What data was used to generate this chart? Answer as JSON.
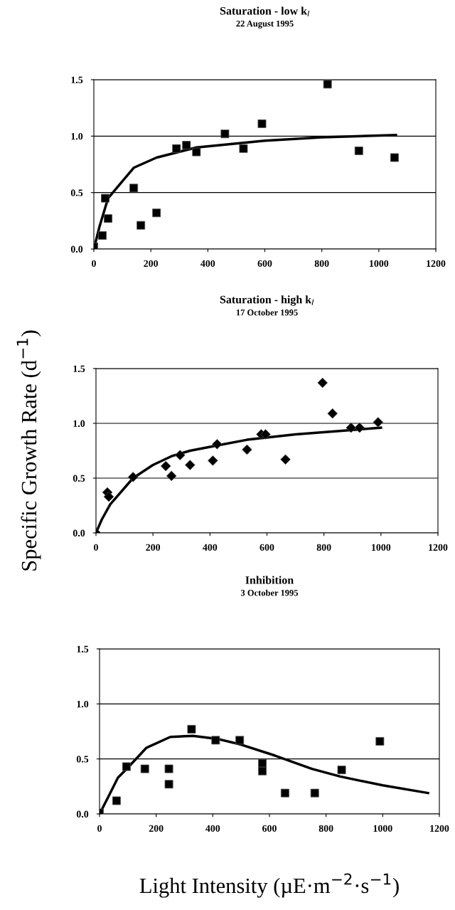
{
  "chart_data": [
    {
      "type": "scatter",
      "title": "Saturation - low k$_{I}$",
      "subtitle": "22 August 1995",
      "xlim": [
        0,
        1200
      ],
      "ylim": [
        0,
        1.5
      ],
      "xticks": [
        0,
        200,
        400,
        600,
        800,
        1000,
        1200
      ],
      "yticks": [
        {
          "value": 0,
          "label": "0.0"
        },
        {
          "value": 0.5,
          "label": "0.5"
        },
        {
          "value": 1,
          "label": "1.0"
        },
        {
          "value": 1.5,
          "label": "1.5"
        }
      ],
      "grid": "y",
      "legend": false,
      "series": [
        {
          "color": "#000000",
          "marker": "square",
          "x": [
            0,
            30,
            40,
            50,
            140,
            165,
            220,
            290,
            325,
            360,
            460,
            525,
            590,
            820,
            930,
            1055
          ],
          "values": [
            0.02,
            0.12,
            0.45,
            0.27,
            0.54,
            0.21,
            0.32,
            0.89,
            0.92,
            0.86,
            1.02,
            0.89,
            1.11,
            1.46,
            0.87,
            0.81
          ]
        },
        {
          "type": "line",
          "color": "#000000",
          "marker": "none",
          "line_style": "solid",
          "x": [
            0,
            20,
            50,
            140,
            220,
            360,
            600,
            800,
            1060
          ],
          "values": [
            0,
            0.2,
            0.45,
            0.72,
            0.81,
            0.9,
            0.96,
            0.99,
            1.01
          ]
        }
      ]
    },
    {
      "type": "scatter",
      "title": "Saturation - high k$_{I}$",
      "subtitle": "17 October 1995",
      "ylabel": "Specific Growth Rate (d$^{−1}$)",
      "xlim": [
        0,
        1200
      ],
      "ylim": [
        0,
        1.5
      ],
      "xticks": [
        0,
        200,
        400,
        600,
        800,
        1000,
        1200
      ],
      "yticks": [
        {
          "value": 0,
          "label": "0.0"
        },
        {
          "value": 0.5,
          "label": "0.5"
        },
        {
          "value": 1,
          "label": "1.0"
        },
        {
          "value": 1.5,
          "label": "1.5"
        }
      ],
      "grid": "y",
      "legend": false,
      "series": [
        {
          "color": "#000000",
          "marker": "diamond",
          "x": [
            0,
            40,
            45,
            130,
            245,
            265,
            295,
            330,
            410,
            425,
            530,
            580,
            595,
            665,
            795,
            830,
            895,
            925,
            990
          ],
          "values": [
            0,
            0.37,
            0.33,
            0.51,
            0.61,
            0.52,
            0.71,
            0.62,
            0.66,
            0.81,
            0.76,
            0.9,
            0.9,
            0.67,
            1.37,
            1.09,
            0.96,
            0.96,
            1.01
          ]
        },
        {
          "type": "line",
          "color": "#000000",
          "marker": "none",
          "line_style": "solid",
          "x": [
            0,
            20,
            50,
            130,
            200,
            265,
            330,
            430,
            530,
            700,
            1000
          ],
          "values": [
            0,
            0.12,
            0.26,
            0.5,
            0.62,
            0.7,
            0.75,
            0.8,
            0.85,
            0.9,
            0.96
          ]
        }
      ]
    },
    {
      "type": "scatter",
      "title": "Inhibition",
      "subtitle": "3 October 1995",
      "xlabel": "Light Intensity (µE·m$^{−2}$·s$^{−1}$)",
      "xlim": [
        0,
        1200
      ],
      "ylim": [
        0,
        1.5
      ],
      "xticks": [
        0,
        200,
        400,
        600,
        800,
        1000,
        1200
      ],
      "yticks": [
        {
          "value": 0,
          "label": "0.0"
        },
        {
          "value": 0.5,
          "label": "0.5"
        },
        {
          "value": 1,
          "label": "1.0"
        },
        {
          "value": 1.5,
          "label": "1.5"
        }
      ],
      "grid": "y",
      "legend": false,
      "series": [
        {
          "color": "#000000",
          "marker": "square",
          "x": [
            0,
            60,
            95,
            160,
            245,
            245,
            325,
            410,
            495,
            575,
            575,
            655,
            760,
            855,
            990
          ],
          "values": [
            0.01,
            0.12,
            0.43,
            0.41,
            0.41,
            0.27,
            0.77,
            0.67,
            0.67,
            0.46,
            0.39,
            0.19,
            0.19,
            0.4,
            0.66
          ]
        },
        {
          "type": "line",
          "color": "#000000",
          "marker": "none",
          "line_style": "solid",
          "x": [
            0,
            30,
            65,
            100,
            165,
            250,
            330,
            420,
            500,
            620,
            750,
            850,
            1000,
            1160
          ],
          "values": [
            0,
            0.15,
            0.33,
            0.42,
            0.6,
            0.7,
            0.71,
            0.68,
            0.63,
            0.53,
            0.41,
            0.34,
            0.26,
            0.19
          ]
        }
      ]
    }
  ]
}
